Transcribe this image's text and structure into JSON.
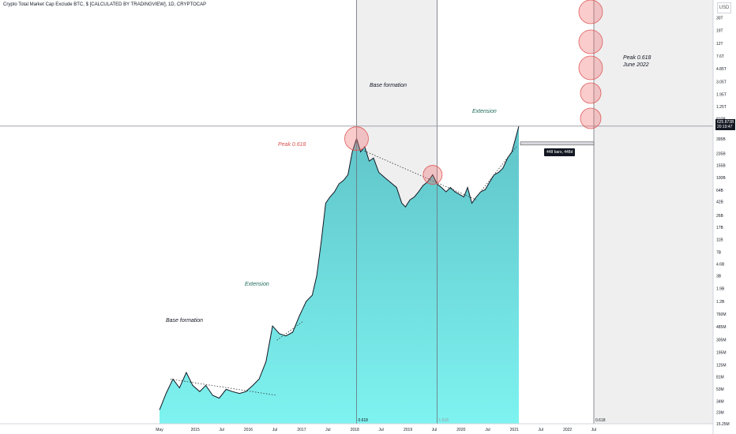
{
  "header": {
    "title": "Crypto Total Market Cap Exclude BTC, $ [CALCULATED BY TRADINGVIEW], 1D, CRYPTOCAP",
    "currency_button": "USD"
  },
  "annotations": {
    "base_formation_1": "Base formation",
    "base_formation_2": "Base formation",
    "extension_1": "Extension",
    "extension_2": "Extension",
    "peak_1": "Peak 0.618",
    "peak_2022_line1": "Peak 0.618",
    "peak_2022_line2": "June 2022",
    "fib_label_1": "0.618",
    "fib_label_2": "1.618",
    "fib_label_3": "0.618",
    "bars_label": "448 bars, 448d"
  },
  "price_tag": {
    "value": "625.873B",
    "countdown": "20:19:47"
  },
  "colors": {
    "area_top": "#5fc3c8",
    "area_bottom": "#7ef3f0",
    "line": "#131722",
    "circle_fill": "rgba(240,110,110,0.35)",
    "circle_stroke": "#e05a5a",
    "shade": "rgba(120,120,130,0.12)"
  },
  "chart_data": {
    "type": "area",
    "title": "Crypto Total Market Cap Exclude BTC, $ [CALCULATED BY TRADINGVIEW], 1D, CRYPTOCAP",
    "xlabel": "",
    "ylabel": "",
    "y_scale": "log",
    "ylim": [
      15250000,
      45000000000000
    ],
    "x_tick_labels": [
      "May",
      "2015",
      "Jul",
      "2016",
      "Jul",
      "2017",
      "Jul",
      "2018",
      "Jul",
      "2019",
      "Jul",
      "2020",
      "Jul",
      "2021",
      "Jul",
      "2022",
      "Jul"
    ],
    "x_tick_dates": [
      "2014-05-01",
      "2015-01-01",
      "2015-07-01",
      "2016-01-01",
      "2016-07-01",
      "2017-01-01",
      "2017-07-01",
      "2018-01-01",
      "2018-07-01",
      "2019-01-01",
      "2019-07-01",
      "2020-01-01",
      "2020-07-01",
      "2021-01-01",
      "2021-07-01",
      "2022-01-01",
      "2022-07-01"
    ],
    "y_tick_labels": [
      "30T",
      "19T",
      "12T",
      "7.6T",
      "4.85T",
      "3.05T",
      "1.95T",
      "1.25T",
      "810B",
      "395B",
      "235B",
      "155B",
      "100B",
      "64B",
      "42B",
      "26B",
      "17B",
      "11B",
      "7B",
      "4.6B",
      "3B",
      "1.9B",
      "1.2B",
      "760M",
      "485M",
      "305M",
      "195M",
      "125M",
      "81M",
      "53M",
      "34M",
      "23M",
      "15.25M"
    ],
    "y_tick_values": [
      30000000000000,
      19000000000000,
      12000000000000,
      7600000000000,
      4850000000000,
      3050000000000,
      1950000000000,
      1250000000000,
      810000000000,
      395000000000,
      235000000000,
      155000000000,
      100000000000,
      64000000000,
      42000000000,
      26000000000,
      17000000000,
      11000000000,
      7000000000,
      4600000000,
      3000000000,
      1900000000,
      1200000000,
      760000000,
      485000000,
      305000000,
      195000000,
      125000000,
      81000000,
      53000000,
      34000000,
      23000000,
      15250000
    ],
    "series": [
      {
        "x": [
          "2014-05-01",
          "2014-06-15",
          "2014-08-01",
          "2014-09-15",
          "2014-11-01",
          "2014-12-15",
          "2015-02-01",
          "2015-03-15",
          "2015-05-01",
          "2015-06-15",
          "2015-08-01",
          "2015-09-15",
          "2015-11-01",
          "2015-12-15",
          "2016-02-01",
          "2016-03-15",
          "2016-05-01",
          "2016-06-15",
          "2016-08-01",
          "2016-09-15",
          "2016-11-01",
          "2016-12-15",
          "2017-02-01",
          "2017-03-15",
          "2017-04-15",
          "2017-05-15",
          "2017-06-15",
          "2017-07-15",
          "2017-08-15",
          "2017-09-15",
          "2017-10-15",
          "2017-11-15",
          "2017-12-15",
          "2018-01-13",
          "2018-02-10",
          "2018-03-10",
          "2018-04-10",
          "2018-05-10",
          "2018-06-15",
          "2018-07-25",
          "2018-09-15",
          "2018-10-15",
          "2018-11-20",
          "2018-12-15",
          "2019-01-15",
          "2019-02-15",
          "2019-03-15",
          "2019-04-15",
          "2019-05-15",
          "2019-06-20",
          "2019-07-20",
          "2019-08-20",
          "2019-09-20",
          "2019-10-20",
          "2019-11-20",
          "2019-12-20",
          "2020-01-20",
          "2020-02-15",
          "2020-03-15",
          "2020-04-15",
          "2020-05-15",
          "2020-06-15",
          "2020-07-15",
          "2020-08-15",
          "2020-09-15",
          "2020-10-15",
          "2020-11-15",
          "2020-12-15",
          "2021-01-15",
          "2021-02-01"
        ],
        "y": [
          25000000,
          45000000,
          75000000,
          55000000,
          95000000,
          60000000,
          48000000,
          60000000,
          42000000,
          38000000,
          52000000,
          48000000,
          45000000,
          48000000,
          60000000,
          75000000,
          140000000,
          500000000,
          380000000,
          350000000,
          400000000,
          700000000,
          1200000000,
          1500000000,
          3000000000,
          10000000000,
          40000000000,
          50000000000,
          60000000000,
          80000000000,
          90000000000,
          110000000000,
          250000000000,
          400000000000,
          250000000000,
          300000000000,
          180000000000,
          200000000000,
          120000000000,
          100000000000,
          80000000000,
          70000000000,
          40000000000,
          35000000000,
          45000000000,
          50000000000,
          60000000000,
          75000000000,
          85000000000,
          110000000000,
          80000000000,
          70000000000,
          60000000000,
          70000000000,
          60000000000,
          55000000000,
          50000000000,
          70000000000,
          40000000000,
          50000000000,
          60000000000,
          65000000000,
          85000000000,
          110000000000,
          120000000000,
          140000000000,
          200000000000,
          250000000000,
          450000000000,
          625873000000
        ]
      }
    ]
  }
}
